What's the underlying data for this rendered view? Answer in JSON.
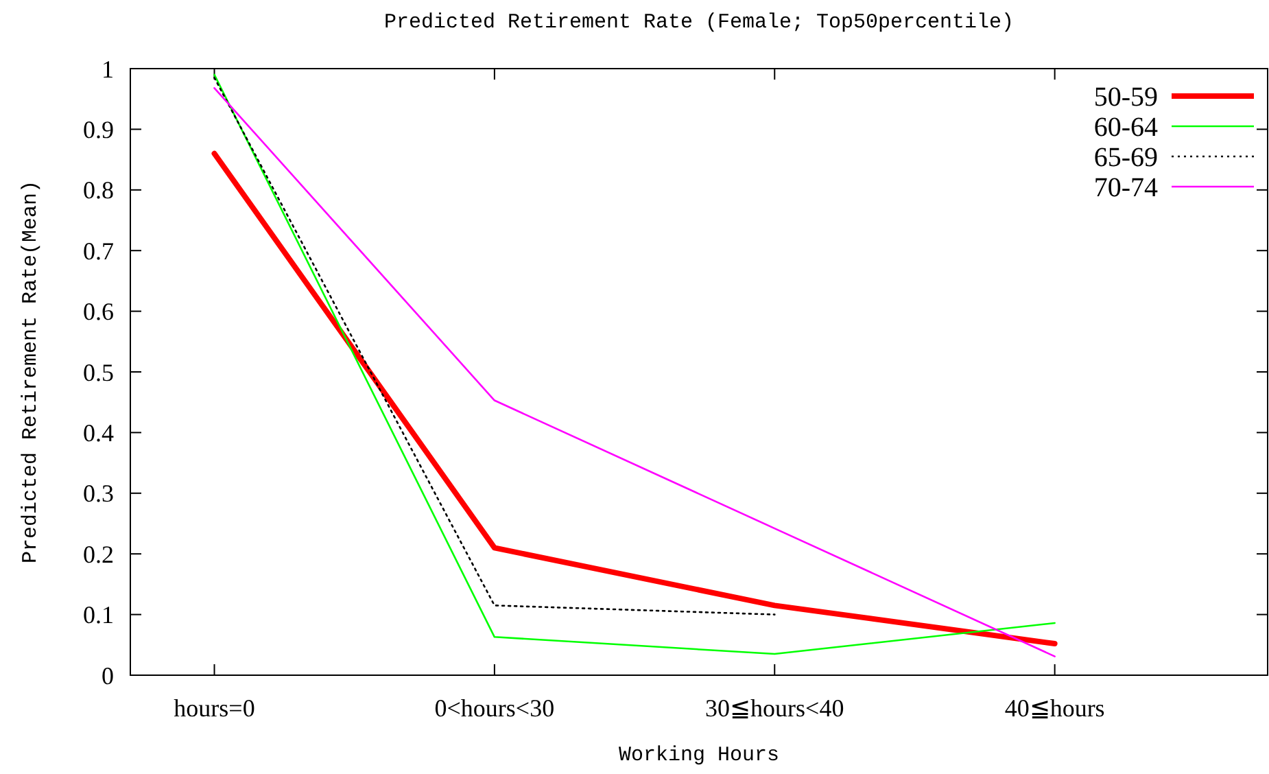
{
  "chart_data": {
    "type": "line",
    "title": "Predicted Retirement Rate (Female; Top50percentile)",
    "xlabel": "Working Hours",
    "ylabel": "Predicted Retirement Rate(Mean)",
    "categories": [
      "hours=0",
      "0<hours<30",
      "30≦hours<40",
      "40≦hours"
    ],
    "series": [
      {
        "name": "50-59",
        "color": "#ff0000",
        "values": [
          0.86,
          0.21,
          0.115,
          0.052
        ]
      },
      {
        "name": "60-64",
        "color": "#00ff00",
        "values": [
          0.99,
          0.063,
          0.035,
          0.086
        ]
      },
      {
        "name": "65-69",
        "color": "#000000",
        "line_style": "dotted",
        "values": [
          0.985,
          0.115,
          0.1,
          null
        ]
      },
      {
        "name": "70-74",
        "color": "#ff00ff",
        "values": [
          0.968,
          0.453,
          0.242,
          0.031
        ]
      }
    ],
    "ylim": [
      0,
      1
    ],
    "yticks": [
      0,
      0.1,
      0.2,
      0.3,
      0.4,
      0.5,
      0.6,
      0.7,
      0.8,
      0.9,
      1
    ],
    "grid": false,
    "legend": "top right"
  }
}
